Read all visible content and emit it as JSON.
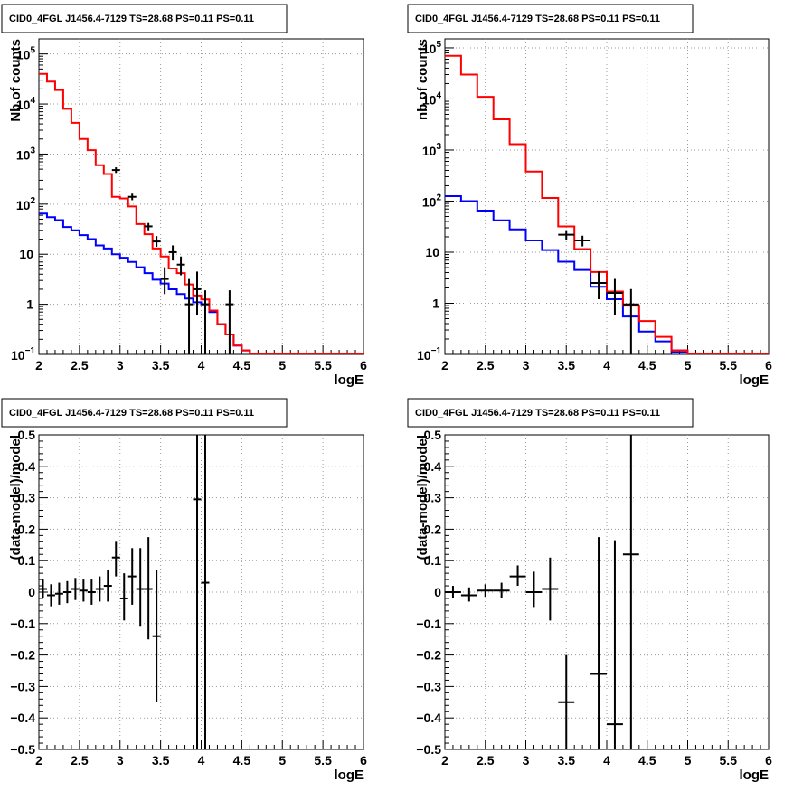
{
  "panel_title": "CID0_4FGL J1456.4-7129 TS=28.68 PS=0.11 PS=0.11",
  "colors": {
    "model": "#ff0000",
    "background": "#0000ff",
    "data": "#000000",
    "grid": "#9a9a9a"
  },
  "chart_data": [
    {
      "type": "step-histogram",
      "title": "CID0_4FGL J1456.4-7129 TS=28.68 PS=0.11 PS=0.11",
      "xlabel": "logE",
      "ylabel": "Nb of counts",
      "xlim": [
        2,
        6
      ],
      "ylim": [
        0.1,
        200000
      ],
      "yscale": "log",
      "grid": true,
      "xticks": [
        "2",
        "2.5",
        "3",
        "3.5",
        "4",
        "4.5",
        "5",
        "5.5",
        "6"
      ],
      "yticks": [
        {
          "value": 0.1,
          "label": "10",
          "exp": "−1"
        },
        {
          "value": 1,
          "label": "1",
          "exp": ""
        },
        {
          "value": 10,
          "label": "10",
          "exp": ""
        },
        {
          "value": 100,
          "label": "10",
          "exp": "2"
        },
        {
          "value": 1000,
          "label": "10",
          "exp": "3"
        },
        {
          "value": 10000,
          "label": "10",
          "exp": "4"
        },
        {
          "value": 100000,
          "label": "10",
          "exp": "5"
        }
      ],
      "bin_edges": [
        2,
        2.1,
        2.2,
        2.3,
        2.4,
        2.5,
        2.6,
        2.7,
        2.8,
        2.9,
        3.0,
        3.1,
        3.2,
        3.3,
        3.4,
        3.5,
        3.6,
        3.7,
        3.8,
        3.9,
        4.0,
        4.1,
        4.2,
        4.3,
        4.4,
        4.5,
        4.6,
        4.7,
        4.8,
        4.9,
        5.0,
        5.1,
        5.2,
        5.3,
        5.4,
        5.5,
        5.6,
        5.7,
        5.8,
        5.9,
        6.0
      ],
      "series": [
        {
          "name": "model",
          "color": "#ff0000",
          "values": [
            40000,
            28000,
            19000,
            8000,
            4200,
            2000,
            1200,
            600,
            400,
            140,
            130,
            90,
            40,
            25,
            13,
            9,
            5.2,
            4.2,
            2.5,
            1.5,
            1.25,
            0.75,
            0.4,
            0.25,
            0.15,
            0.12,
            0.1,
            0.1,
            0.1,
            0.1,
            0.1,
            0.1,
            0.1,
            0.1,
            0.1,
            0.1,
            0.1,
            0.1,
            0.1,
            0.1
          ]
        },
        {
          "name": "background",
          "color": "#0000ff",
          "values": [
            65,
            55,
            48,
            35,
            30,
            24,
            20,
            15,
            13,
            10,
            8.5,
            7,
            5.5,
            4.2,
            3.1,
            2.6,
            2.0,
            1.6,
            1.3,
            1.1,
            1.0,
            0.7,
            0.4,
            0.25,
            0.15,
            0.12,
            0.1,
            0.1,
            0.1,
            0.1,
            0.1,
            0.1,
            0.1,
            0.1,
            0.1,
            0.1,
            0.1,
            0.1,
            0.1,
            0.1
          ]
        }
      ],
      "data_points": [
        {
          "x": 2.95,
          "y": 480,
          "xerr": 0.05,
          "ylo": 420,
          "yhi": 545
        },
        {
          "x": 3.15,
          "y": 140,
          "xerr": 0.05,
          "ylo": 120,
          "yhi": 162
        },
        {
          "x": 3.35,
          "y": 36,
          "xerr": 0.05,
          "ylo": 30,
          "yhi": 42
        },
        {
          "x": 3.45,
          "y": 18,
          "xerr": 0.05,
          "ylo": 14,
          "yhi": 23
        },
        {
          "x": 3.55,
          "y": 3.2,
          "xerr": 0.05,
          "ylo": 1.6,
          "yhi": 5.5
        },
        {
          "x": 3.65,
          "y": 11,
          "xerr": 0.05,
          "ylo": 7.5,
          "yhi": 15
        },
        {
          "x": 3.75,
          "y": 6.2,
          "xerr": 0.05,
          "ylo": 3.8,
          "yhi": 9
        },
        {
          "x": 3.85,
          "y": 1.0,
          "xerr": 0.05,
          "ylo": 0.1,
          "yhi": 3.2
        },
        {
          "x": 3.95,
          "y": 2.0,
          "xerr": 0.05,
          "ylo": 0.6,
          "yhi": 4.5
        },
        {
          "x": 4.05,
          "y": 1.0,
          "xerr": 0.05,
          "ylo": 0.1,
          "yhi": 1.9
        },
        {
          "x": 4.35,
          "y": 1.0,
          "xerr": 0.05,
          "ylo": 0.1,
          "yhi": 1.9
        }
      ]
    },
    {
      "type": "step-histogram",
      "title": "CID0_4FGL J1456.4-7129 TS=28.68 PS=0.11 PS=0.11",
      "xlabel": "logE",
      "ylabel": "nb of counts",
      "xlim": [
        2,
        6
      ],
      "ylim": [
        0.1,
        150000
      ],
      "yscale": "log",
      "grid": true,
      "xticks": [
        "2",
        "2.5",
        "3",
        "3.5",
        "4",
        "4.5",
        "5",
        "5.5",
        "6"
      ],
      "yticks": [
        {
          "value": 0.1,
          "label": "10",
          "exp": "−1"
        },
        {
          "value": 1,
          "label": "1",
          "exp": ""
        },
        {
          "value": 10,
          "label": "10",
          "exp": ""
        },
        {
          "value": 100,
          "label": "10",
          "exp": "2"
        },
        {
          "value": 1000,
          "label": "10",
          "exp": "3"
        },
        {
          "value": 10000,
          "label": "10",
          "exp": "4"
        },
        {
          "value": 100000,
          "label": "10",
          "exp": "5"
        }
      ],
      "bin_edges": [
        2,
        2.2,
        2.4,
        2.6,
        2.8,
        3.0,
        3.2,
        3.4,
        3.6,
        3.8,
        4.0,
        4.2,
        4.4,
        4.6,
        4.8,
        5.0,
        5.2,
        5.4,
        5.6,
        5.8,
        6.0
      ],
      "series": [
        {
          "name": "model",
          "color": "#ff0000",
          "values": [
            70000,
            30000,
            11000,
            4000,
            1300,
            380,
            115,
            32,
            11.5,
            4.1,
            1.7,
            0.9,
            0.45,
            0.22,
            0.12,
            0.1,
            0.1,
            0.1,
            0.1,
            0.1
          ]
        },
        {
          "name": "background",
          "color": "#0000ff",
          "values": [
            125,
            100,
            65,
            42,
            28,
            17,
            11,
            6.5,
            4.5,
            2.1,
            1.2,
            0.55,
            0.28,
            0.18,
            0.11,
            0.1,
            0.1,
            0.1,
            0.1,
            0.1
          ]
        }
      ],
      "data_points": [
        {
          "x": 3.5,
          "y": 22,
          "xerr": 0.1,
          "ylo": 17,
          "yhi": 27
        },
        {
          "x": 3.7,
          "y": 17,
          "xerr": 0.1,
          "ylo": 13,
          "yhi": 21
        },
        {
          "x": 3.9,
          "y": 2.5,
          "xerr": 0.1,
          "ylo": 1.2,
          "yhi": 4.2
        },
        {
          "x": 4.1,
          "y": 1.6,
          "xerr": 0.1,
          "ylo": 0.6,
          "yhi": 3.0
        },
        {
          "x": 4.3,
          "y": 0.95,
          "xerr": 0.1,
          "ylo": 0.1,
          "yhi": 1.9
        }
      ]
    },
    {
      "type": "errorbar",
      "title": "CID0_4FGL J1456.4-7129 TS=28.68 PS=0.11 PS=0.11",
      "xlabel": "logE",
      "ylabel": "(data-model)/model",
      "xlim": [
        2,
        6
      ],
      "ylim": [
        -0.5,
        0.5
      ],
      "grid": true,
      "xticks": [
        "2",
        "2.5",
        "3",
        "3.5",
        "4",
        "4.5",
        "5",
        "5.5",
        "6"
      ],
      "yticks": [
        "−0.5",
        "−0.4",
        "−0.3",
        "−0.2",
        "−0.1",
        "0",
        "0.1",
        "0.2",
        "0.3",
        "0.4",
        "0.5"
      ],
      "data_points": [
        {
          "x": 2.05,
          "y": 0.01,
          "xerr": 0.05,
          "ylo": -0.02,
          "yhi": 0.04
        },
        {
          "x": 2.15,
          "y": -0.01,
          "xerr": 0.05,
          "ylo": -0.045,
          "yhi": 0.025
        },
        {
          "x": 2.25,
          "y": -0.005,
          "xerr": 0.05,
          "ylo": -0.04,
          "yhi": 0.03
        },
        {
          "x": 2.35,
          "y": 0.0,
          "xerr": 0.05,
          "ylo": -0.035,
          "yhi": 0.035
        },
        {
          "x": 2.45,
          "y": 0.01,
          "xerr": 0.05,
          "ylo": -0.025,
          "yhi": 0.045
        },
        {
          "x": 2.55,
          "y": 0.005,
          "xerr": 0.05,
          "ylo": -0.03,
          "yhi": 0.04
        },
        {
          "x": 2.65,
          "y": 0.0,
          "xerr": 0.05,
          "ylo": -0.04,
          "yhi": 0.04
        },
        {
          "x": 2.75,
          "y": 0.01,
          "xerr": 0.05,
          "ylo": -0.03,
          "yhi": 0.05
        },
        {
          "x": 2.85,
          "y": 0.02,
          "xerr": 0.05,
          "ylo": -0.03,
          "yhi": 0.07
        },
        {
          "x": 2.95,
          "y": 0.11,
          "xerr": 0.05,
          "ylo": 0.05,
          "yhi": 0.16
        },
        {
          "x": 3.05,
          "y": -0.02,
          "xerr": 0.05,
          "ylo": -0.09,
          "yhi": 0.06
        },
        {
          "x": 3.15,
          "y": 0.05,
          "xerr": 0.05,
          "ylo": -0.04,
          "yhi": 0.14
        },
        {
          "x": 3.25,
          "y": 0.01,
          "xerr": 0.05,
          "ylo": -0.11,
          "yhi": 0.14
        },
        {
          "x": 3.35,
          "y": 0.01,
          "xerr": 0.05,
          "ylo": -0.15,
          "yhi": 0.175
        },
        {
          "x": 3.45,
          "y": -0.14,
          "xerr": 0.05,
          "ylo": -0.35,
          "yhi": 0.07
        },
        {
          "x": 3.95,
          "y": 0.295,
          "xerr": 0.05,
          "ylo": -0.5,
          "yhi": 0.5
        },
        {
          "x": 4.05,
          "y": 0.03,
          "xerr": 0.05,
          "ylo": -0.5,
          "yhi": 0.5
        }
      ]
    },
    {
      "type": "errorbar",
      "title": "CID0_4FGL J1456.4-7129 TS=28.68 PS=0.11 PS=0.11",
      "xlabel": "logE",
      "ylabel": "(data-model)/model",
      "xlim": [
        2,
        6
      ],
      "ylim": [
        -0.5,
        0.5
      ],
      "grid": true,
      "xticks": [
        "2",
        "2.5",
        "3",
        "3.5",
        "4",
        "4.5",
        "5",
        "5.5",
        "6"
      ],
      "yticks": [
        "−0.5",
        "−0.4",
        "−0.3",
        "−0.2",
        "−0.1",
        "0",
        "0.1",
        "0.2",
        "0.3",
        "0.4",
        "0.5"
      ],
      "data_points": [
        {
          "x": 2.1,
          "y": 0.0,
          "xerr": 0.1,
          "ylo": -0.02,
          "yhi": 0.02
        },
        {
          "x": 2.3,
          "y": -0.01,
          "xerr": 0.1,
          "ylo": -0.03,
          "yhi": 0.015
        },
        {
          "x": 2.5,
          "y": 0.005,
          "xerr": 0.1,
          "ylo": -0.015,
          "yhi": 0.025
        },
        {
          "x": 2.7,
          "y": 0.005,
          "xerr": 0.1,
          "ylo": -0.02,
          "yhi": 0.03
        },
        {
          "x": 2.9,
          "y": 0.05,
          "xerr": 0.1,
          "ylo": 0.02,
          "yhi": 0.085
        },
        {
          "x": 3.1,
          "y": 0.0,
          "xerr": 0.1,
          "ylo": -0.05,
          "yhi": 0.065
        },
        {
          "x": 3.3,
          "y": 0.01,
          "xerr": 0.1,
          "ylo": -0.09,
          "yhi": 0.11
        },
        {
          "x": 3.5,
          "y": -0.35,
          "xerr": 0.1,
          "ylo": -0.5,
          "yhi": -0.2
        },
        {
          "x": 3.9,
          "y": -0.26,
          "xerr": 0.1,
          "ylo": -0.5,
          "yhi": 0.175
        },
        {
          "x": 4.1,
          "y": -0.42,
          "xerr": 0.1,
          "ylo": -0.5,
          "yhi": 0.165
        },
        {
          "x": 4.3,
          "y": 0.12,
          "xerr": 0.1,
          "ylo": -0.5,
          "yhi": 0.5
        }
      ]
    }
  ]
}
